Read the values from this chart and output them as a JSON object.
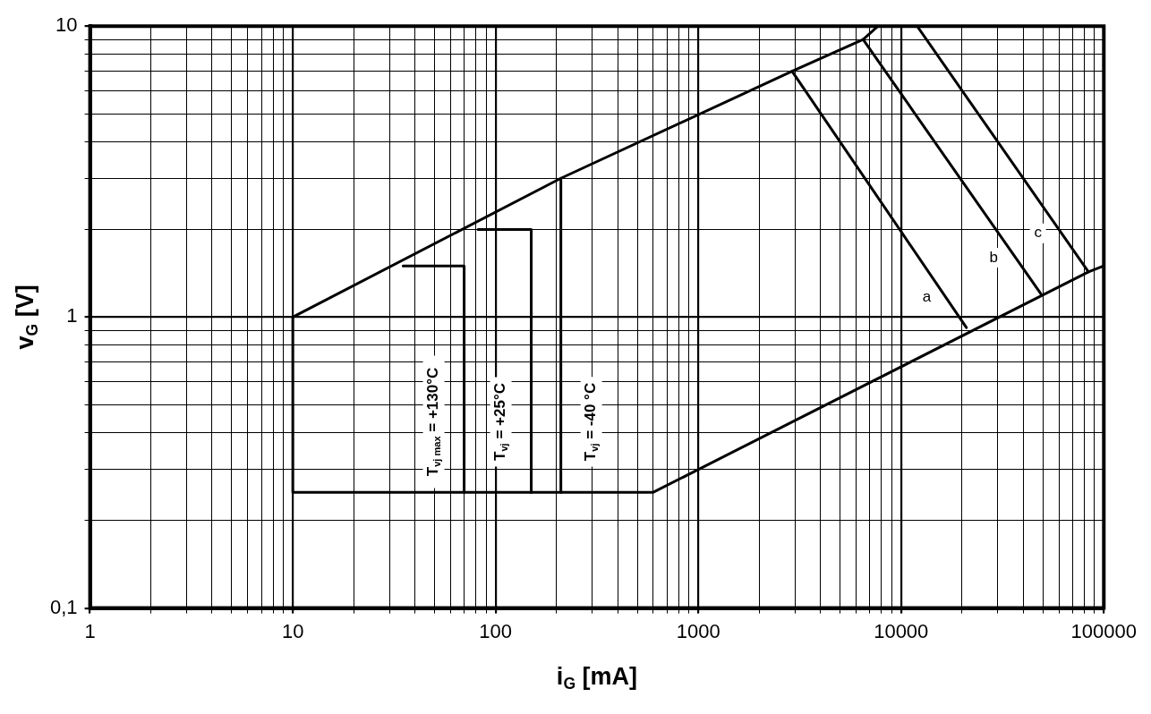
{
  "chart_data": {
    "type": "line",
    "xlabel": "i$_{G}$ [mA]",
    "ylabel": "v$_{G}$ [V]",
    "log": "xy",
    "grid": true,
    "legend": false,
    "marker": "none",
    "line_style": "solid",
    "xlim": [
      1,
      100000
    ],
    "ylim": [
      0.1,
      10
    ],
    "xticks": [
      1,
      {
        "value": 2,
        "label": null
      },
      {
        "value": 3,
        "label": null
      },
      {
        "value": 4,
        "label": null
      },
      {
        "value": 5,
        "label": null
      },
      {
        "value": 6,
        "label": null
      },
      {
        "value": 7,
        "label": null
      },
      {
        "value": 8,
        "label": null
      },
      {
        "value": 9,
        "label": null
      },
      10,
      {
        "value": 20,
        "label": null
      },
      {
        "value": 30,
        "label": null
      },
      {
        "value": 40,
        "label": null
      },
      {
        "value": 50,
        "label": null
      },
      {
        "value": 60,
        "label": null
      },
      {
        "value": 70,
        "label": null
      },
      {
        "value": 80,
        "label": null
      },
      {
        "value": 90,
        "label": null
      },
      100,
      {
        "value": 200,
        "label": null
      },
      {
        "value": 300,
        "label": null
      },
      {
        "value": 400,
        "label": null
      },
      {
        "value": 500,
        "label": null
      },
      {
        "value": 600,
        "label": null
      },
      {
        "value": 700,
        "label": null
      },
      {
        "value": 800,
        "label": null
      },
      {
        "value": 900,
        "label": null
      },
      1000,
      {
        "value": 2000,
        "label": null
      },
      {
        "value": 3000,
        "label": null
      },
      {
        "value": 4000,
        "label": null
      },
      {
        "value": 5000,
        "label": null
      },
      {
        "value": 6000,
        "label": null
      },
      {
        "value": 7000,
        "label": null
      },
      {
        "value": 8000,
        "label": null
      },
      {
        "value": 9000,
        "label": null
      },
      10000,
      {
        "value": 20000,
        "label": null
      },
      {
        "value": 30000,
        "label": null
      },
      {
        "value": 40000,
        "label": null
      },
      {
        "value": 50000,
        "label": null
      },
      {
        "value": 60000,
        "label": null
      },
      {
        "value": 70000,
        "label": null
      },
      {
        "value": 80000,
        "label": null
      },
      {
        "value": 90000,
        "label": null
      },
      100000
    ],
    "yticks": [
      {
        "value": 0.1,
        "label": "0,1"
      },
      {
        "value": 0.2,
        "label": null
      },
      {
        "value": 0.3,
        "label": null
      },
      {
        "value": 0.4,
        "label": null
      },
      {
        "value": 0.5,
        "label": null
      },
      {
        "value": 0.6,
        "label": null
      },
      {
        "value": 0.7,
        "label": null
      },
      {
        "value": 0.8,
        "label": null
      },
      {
        "value": 0.9,
        "label": null
      },
      1,
      {
        "value": 2,
        "label": null
      },
      {
        "value": 3,
        "label": null
      },
      {
        "value": 4,
        "label": null
      },
      {
        "value": 5,
        "label": null
      },
      {
        "value": 6,
        "label": null
      },
      {
        "value": 7,
        "label": null
      },
      {
        "value": 8,
        "label": null
      },
      {
        "value": 9,
        "label": null
      },
      10
    ],
    "series": [
      {
        "color": "#000000",
        "x": [
          10,
          210,
          2900,
          6500,
          7700
        ],
        "values": [
          1,
          3,
          7,
          9,
          10
        ]
      },
      {
        "color": "#000000",
        "x": [
          10,
          10,
          600,
          84000,
          100000
        ],
        "values": [
          1,
          0.25,
          0.25,
          1.43,
          1.5
        ]
      },
      {
        "color": "#000000",
        "x": [
          35,
          70,
          70
        ],
        "values": [
          1.5,
          1.5,
          0.25
        ]
      },
      {
        "color": "#000000",
        "x": [
          82,
          150,
          150
        ],
        "values": [
          2,
          2,
          0.25
        ]
      },
      {
        "color": "#000000",
        "x": [
          210,
          210
        ],
        "values": [
          3,
          0.25
        ]
      },
      {
        "color": "#000000",
        "x": [
          2900,
          21000
        ],
        "values": [
          7,
          0.92
        ]
      },
      {
        "color": "#000000",
        "x": [
          6500,
          49000
        ],
        "values": [
          9,
          1.2
        ]
      },
      {
        "color": "#000000",
        "x": [
          12000,
          84000
        ],
        "values": [
          10,
          1.43
        ]
      }
    ],
    "annotations": [
      "T$_{vj max}$ = +130°C",
      "T$_{vj}$ = +25°C",
      "T$_{vj}$ = -40 °C",
      {
        "text": "a",
        "x": 13400,
        "y": 1.17
      },
      {
        "text": "b",
        "x": 28600,
        "y": 1.6
      },
      {
        "text": "c",
        "x": 47300,
        "y": 1.94
      }
    ]
  }
}
